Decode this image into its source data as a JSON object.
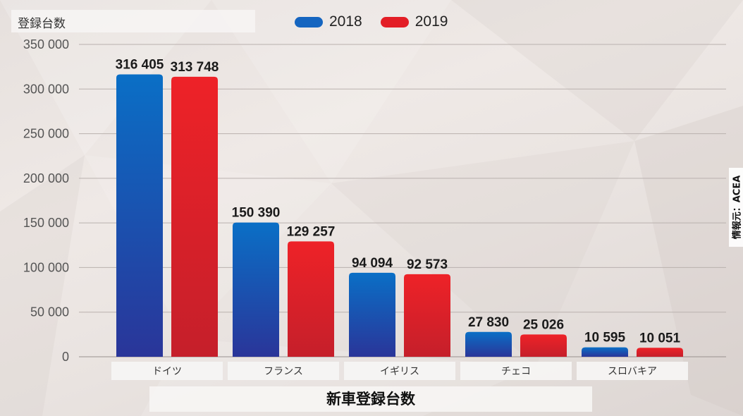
{
  "chart_data": {
    "type": "bar",
    "title": "新車登録台数",
    "ylabel": "登録台数",
    "xlabel": "",
    "categories": [
      "ドイツ",
      "フランス",
      "イギリス",
      "チェコ",
      "スロバキア"
    ],
    "series": [
      {
        "name": "2018",
        "values": [
          316405,
          150390,
          94094,
          27830,
          10595
        ],
        "color": "#1565c0"
      },
      {
        "name": "2019",
        "values": [
          313748,
          129257,
          92573,
          25026,
          10051
        ],
        "color": "#e31e26"
      }
    ],
    "value_labels": [
      [
        "316 405",
        "150 390",
        "94 094",
        "27 830",
        "10 595"
      ],
      [
        "313 748",
        "129 257",
        "92 573",
        "25 026",
        "10 051"
      ]
    ],
    "ylim": [
      0,
      350000
    ],
    "yticks": [
      0,
      50000,
      100000,
      150000,
      200000,
      250000,
      300000,
      350000
    ],
    "ytick_labels": [
      "0",
      "50 000",
      "100 000",
      "150 000",
      "200 000",
      "250 000",
      "300 000",
      "350 000"
    ],
    "grid": true,
    "legend_position": "top-center",
    "source": "情報元：ACEA"
  }
}
